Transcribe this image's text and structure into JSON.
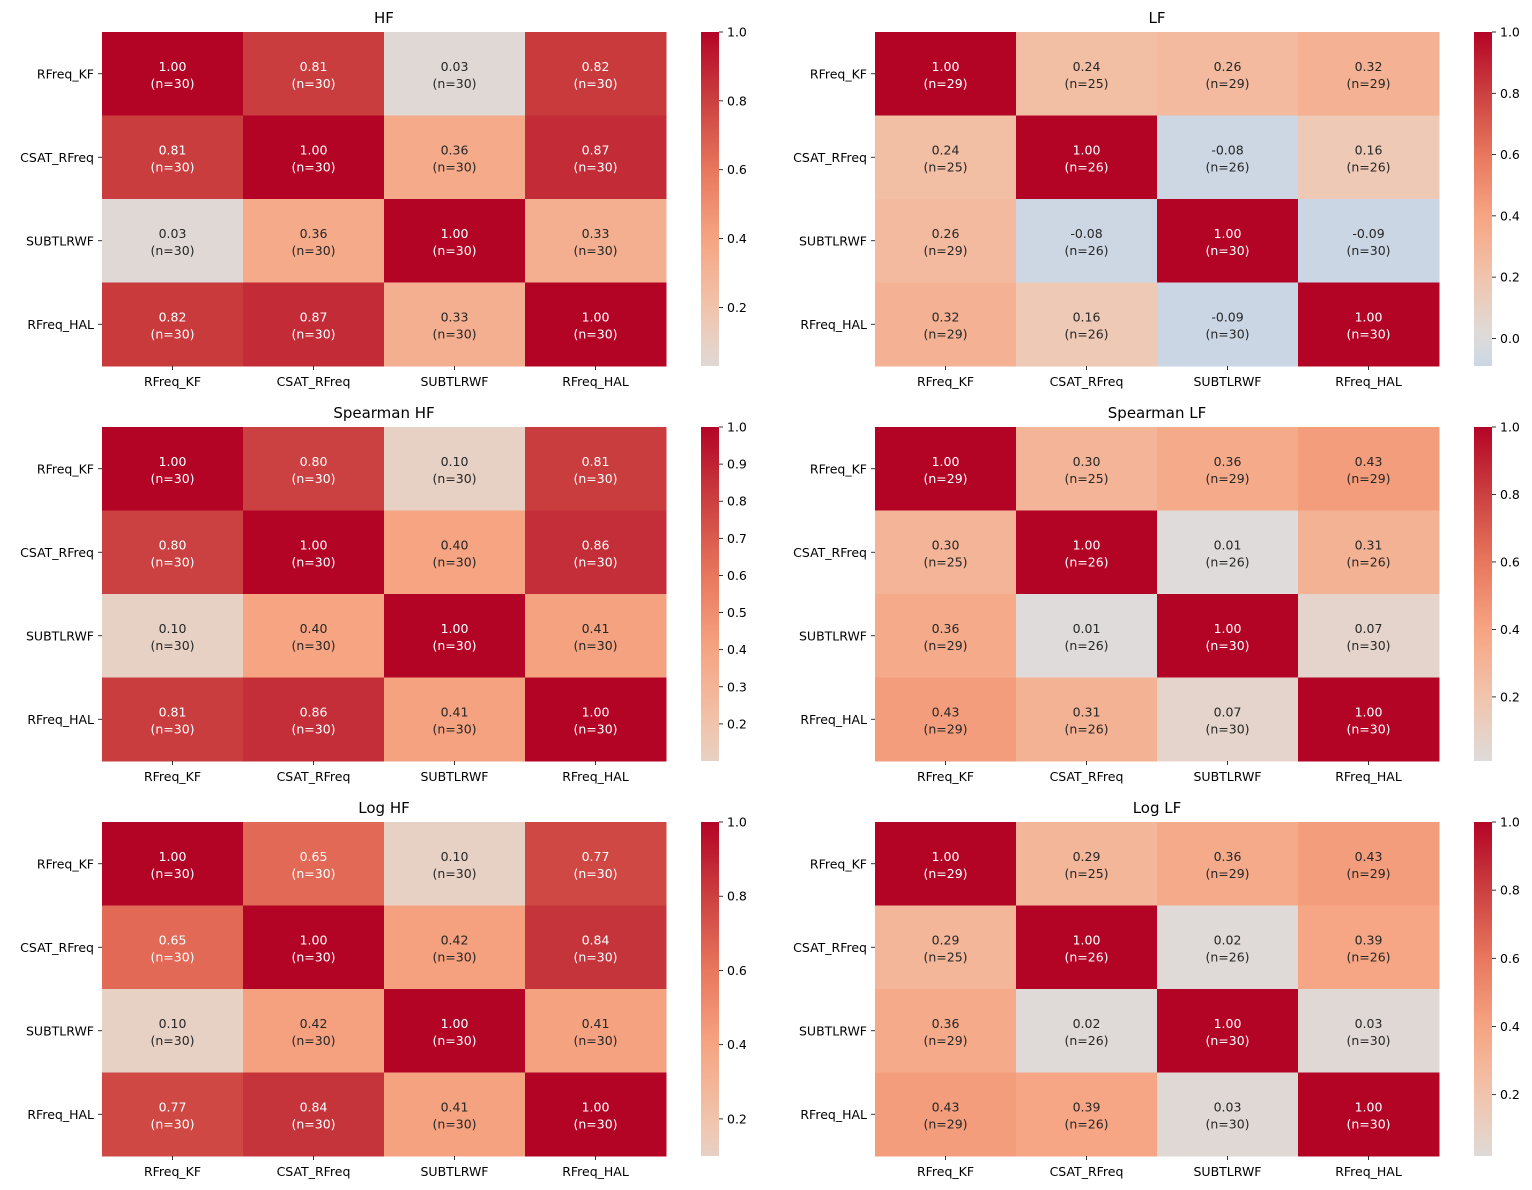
{
  "chart_data": [
    {
      "type": "heatmap",
      "title": "HF",
      "labels": [
        "RFreq_KF",
        "CSAT_RFreq",
        "SUBTLRWF",
        "RFreq_HAL"
      ],
      "values": [
        [
          1.0,
          0.81,
          0.03,
          0.82
        ],
        [
          0.81,
          1.0,
          0.36,
          0.87
        ],
        [
          0.03,
          0.36,
          1.0,
          0.33
        ],
        [
          0.82,
          0.87,
          0.33,
          1.0
        ]
      ],
      "n": [
        [
          30,
          30,
          30,
          30
        ],
        [
          30,
          30,
          30,
          30
        ],
        [
          30,
          30,
          30,
          30
        ],
        [
          30,
          30,
          30,
          30
        ]
      ],
      "colormap": "coolwarm",
      "center": 0,
      "colorbar": {
        "range": [
          0.03,
          1.0
        ],
        "ticks": [
          "0.2",
          "0.4",
          "0.6",
          "0.8",
          "1.0"
        ]
      }
    },
    {
      "type": "heatmap",
      "title": "LF",
      "labels": [
        "RFreq_KF",
        "CSAT_RFreq",
        "SUBTLRWF",
        "RFreq_HAL"
      ],
      "values": [
        [
          1.0,
          0.24,
          0.26,
          0.32
        ],
        [
          0.24,
          1.0,
          -0.08,
          0.16
        ],
        [
          0.26,
          -0.08,
          1.0,
          -0.09
        ],
        [
          0.32,
          0.16,
          -0.09,
          1.0
        ]
      ],
      "n": [
        [
          29,
          25,
          29,
          29
        ],
        [
          25,
          26,
          26,
          26
        ],
        [
          29,
          26,
          30,
          30
        ],
        [
          29,
          26,
          30,
          30
        ]
      ],
      "colormap": "coolwarm",
      "center": 0,
      "colorbar": {
        "range": [
          -0.09,
          1.0
        ],
        "ticks": [
          "0.0",
          "0.2",
          "0.4",
          "0.6",
          "0.8",
          "1.0"
        ]
      }
    },
    {
      "type": "heatmap",
      "title": "Spearman HF",
      "labels": [
        "RFreq_KF",
        "CSAT_RFreq",
        "SUBTLRWF",
        "RFreq_HAL"
      ],
      "values": [
        [
          1.0,
          0.8,
          0.1,
          0.81
        ],
        [
          0.8,
          1.0,
          0.4,
          0.86
        ],
        [
          0.1,
          0.4,
          1.0,
          0.41
        ],
        [
          0.81,
          0.86,
          0.41,
          1.0
        ]
      ],
      "n": [
        [
          30,
          30,
          30,
          30
        ],
        [
          30,
          30,
          30,
          30
        ],
        [
          30,
          30,
          30,
          30
        ],
        [
          30,
          30,
          30,
          30
        ]
      ],
      "colormap": "coolwarm",
      "center": 0,
      "colorbar": {
        "range": [
          0.1,
          1.0
        ],
        "ticks": [
          "0.2",
          "0.3",
          "0.4",
          "0.5",
          "0.6",
          "0.7",
          "0.8",
          "0.9",
          "1.0"
        ]
      }
    },
    {
      "type": "heatmap",
      "title": "Spearman LF",
      "labels": [
        "RFreq_KF",
        "CSAT_RFreq",
        "SUBTLRWF",
        "RFreq_HAL"
      ],
      "values": [
        [
          1.0,
          0.3,
          0.36,
          0.43
        ],
        [
          0.3,
          1.0,
          0.01,
          0.31
        ],
        [
          0.36,
          0.01,
          1.0,
          0.07
        ],
        [
          0.43,
          0.31,
          0.07,
          1.0
        ]
      ],
      "n": [
        [
          29,
          25,
          29,
          29
        ],
        [
          25,
          26,
          26,
          26
        ],
        [
          29,
          26,
          30,
          30
        ],
        [
          29,
          26,
          30,
          30
        ]
      ],
      "colormap": "coolwarm",
      "center": 0,
      "colorbar": {
        "range": [
          0.01,
          1.0
        ],
        "ticks": [
          "0.2",
          "0.4",
          "0.6",
          "0.8",
          "1.0"
        ]
      }
    },
    {
      "type": "heatmap",
      "title": "Log HF",
      "labels": [
        "RFreq_KF",
        "CSAT_RFreq",
        "SUBTLRWF",
        "RFreq_HAL"
      ],
      "values": [
        [
          1.0,
          0.65,
          0.1,
          0.77
        ],
        [
          0.65,
          1.0,
          0.42,
          0.84
        ],
        [
          0.1,
          0.42,
          1.0,
          0.41
        ],
        [
          0.77,
          0.84,
          0.41,
          1.0
        ]
      ],
      "n": [
        [
          30,
          30,
          30,
          30
        ],
        [
          30,
          30,
          30,
          30
        ],
        [
          30,
          30,
          30,
          30
        ],
        [
          30,
          30,
          30,
          30
        ]
      ],
      "colormap": "coolwarm",
      "center": 0,
      "colorbar": {
        "range": [
          0.1,
          1.0
        ],
        "ticks": [
          "0.2",
          "0.4",
          "0.6",
          "0.8",
          "1.0"
        ]
      }
    },
    {
      "type": "heatmap",
      "title": "Log LF",
      "labels": [
        "RFreq_KF",
        "CSAT_RFreq",
        "SUBTLRWF",
        "RFreq_HAL"
      ],
      "values": [
        [
          1.0,
          0.29,
          0.36,
          0.43
        ],
        [
          0.29,
          1.0,
          0.02,
          0.39
        ],
        [
          0.36,
          0.02,
          1.0,
          0.03
        ],
        [
          0.43,
          0.39,
          0.03,
          1.0
        ]
      ],
      "n": [
        [
          29,
          25,
          29,
          29
        ],
        [
          25,
          26,
          26,
          26
        ],
        [
          29,
          26,
          30,
          30
        ],
        [
          29,
          26,
          30,
          30
        ]
      ],
      "colormap": "coolwarm",
      "center": 0,
      "colorbar": {
        "range": [
          0.02,
          1.0
        ],
        "ticks": [
          "0.2",
          "0.4",
          "0.6",
          "0.8",
          "1.0"
        ]
      }
    }
  ]
}
